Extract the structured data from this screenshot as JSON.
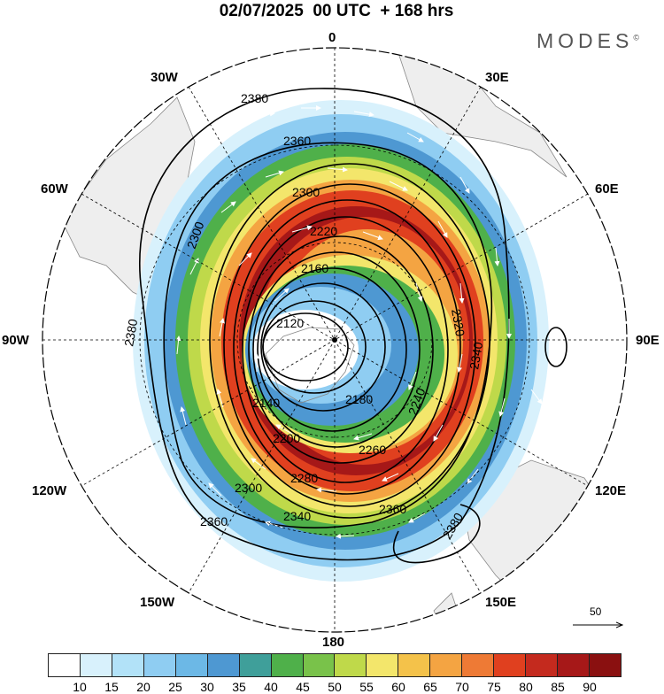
{
  "title": "02/07/2025  00 UTC  + 168 hrs",
  "brand": "MODES",
  "brand_mark": "©",
  "map": {
    "projection": "south-polar-stereographic",
    "longitude_labels": {
      "top": "0",
      "bottom": "180",
      "left": "90W",
      "right": "90E",
      "upper_left_30": "30W",
      "upper_right_30": "30E",
      "upper_left_60": "60W",
      "upper_right_60": "60E",
      "lower_left_120": "120W",
      "lower_right_120": "120E",
      "lower_left_150": "150W",
      "lower_right_150": "150E"
    },
    "field_colors": {
      "light": "#d8f1fc",
      "blue": "#6cb8e6",
      "deepblue": "#3f7fc0",
      "green": "#4fb04a",
      "yellow": "#f3e66b",
      "orange": "#f4a442",
      "red": "#e0401f",
      "darkred": "#a61818"
    },
    "contour_labels": [
      "2380",
      "2360",
      "2300",
      "2220",
      "2160",
      "2120",
      "2140",
      "2180",
      "2200",
      "2260",
      "2280",
      "2300",
      "2340",
      "2360",
      "2380",
      "2240",
      "2320",
      "2340",
      "2360",
      "2300",
      "2380"
    ],
    "vector_reference_label": "50",
    "land_color": "#eeeeee",
    "coastline_color": "#888888"
  },
  "colorbar": {
    "tick_labels": [
      "10",
      "15",
      "20",
      "25",
      "30",
      "35",
      "40",
      "45",
      "50",
      "55",
      "60",
      "65",
      "70",
      "75",
      "80",
      "85",
      "90"
    ],
    "colors": [
      "#ffffff",
      "#d8f1fc",
      "#b2e2f8",
      "#8fcdf2",
      "#6cb8e6",
      "#4e98d2",
      "#3f9f9a",
      "#4fb04a",
      "#79c24a",
      "#bfd94a",
      "#f3e66b",
      "#f4c24a",
      "#f4a442",
      "#ee7a35",
      "#e0401f",
      "#c42a1e",
      "#a61818",
      "#8a1010"
    ]
  }
}
